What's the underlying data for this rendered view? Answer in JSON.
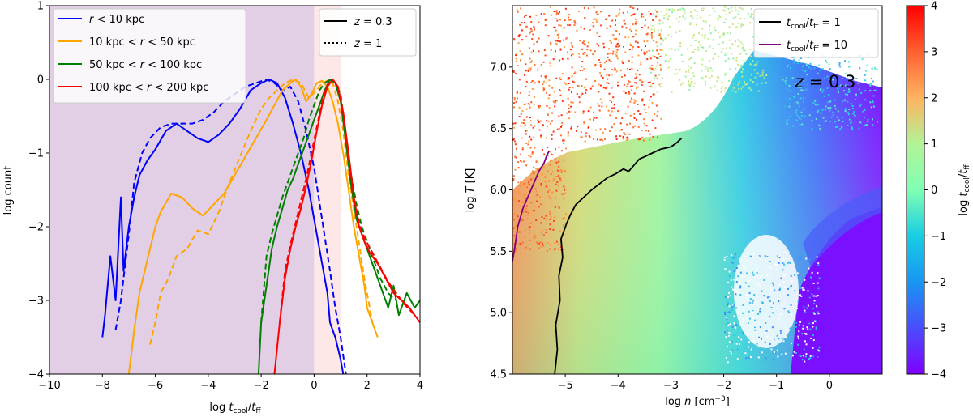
{
  "chart_data": [
    {
      "type": "line",
      "xlabel": "log t_cool/t_ff",
      "ylabel": "log count",
      "xlim": [
        -10,
        4
      ],
      "ylim": [
        -4,
        1
      ],
      "x_ticks": [
        "−10",
        "−8",
        "−6",
        "−4",
        "−2",
        "0",
        "2",
        "4"
      ],
      "y_ticks": [
        "−4",
        "−3",
        "−2",
        "−1",
        "0",
        "1"
      ],
      "shaded_regions": [
        {
          "x": [
            -10,
            0
          ],
          "color": "#e2cfe6"
        },
        {
          "x": [
            0,
            1
          ],
          "color": "#fde7e7"
        }
      ],
      "legend_series": [
        {
          "name": "r < 10 kpc",
          "color": "#0000ff"
        },
        {
          "name": "10 kpc < r < 50 kpc",
          "color": "#ffa500"
        },
        {
          "name": "50 kpc < r < 100 kpc",
          "color": "#007f00"
        },
        {
          "name": "100 kpc < r < 200 kpc",
          "color": "#ff0000"
        }
      ],
      "legend_styles": [
        {
          "name": "z = 0.3",
          "dash": "solid"
        },
        {
          "name": "z = 1",
          "dash": "dotted"
        }
      ],
      "series": [
        {
          "name": "r < 10 kpc",
          "z": "0.3",
          "color": "#0000ff",
          "x": [
            -8.0,
            -7.9,
            -7.7,
            -7.5,
            -7.3,
            -7.2,
            -7.0,
            -6.8,
            -6.6,
            -6.3,
            -6.0,
            -5.6,
            -5.2,
            -4.8,
            -4.4,
            -4.0,
            -3.6,
            -3.2,
            -2.8,
            -2.4,
            -2.0,
            -1.7,
            -1.4,
            -1.1,
            -0.8,
            -0.5,
            -0.2,
            0.1,
            0.3,
            0.5,
            0.6,
            0.8,
            1.0,
            1.1
          ],
          "values": [
            -3.5,
            -3.2,
            -2.4,
            -3.0,
            -1.6,
            -2.6,
            -2.0,
            -1.6,
            -1.3,
            -1.1,
            -0.95,
            -0.7,
            -0.6,
            -0.7,
            -0.8,
            -0.85,
            -0.75,
            -0.6,
            -0.4,
            -0.15,
            -0.05,
            0.0,
            -0.05,
            -0.25,
            -0.6,
            -1.0,
            -1.5,
            -2.1,
            -2.5,
            -2.9,
            -3.3,
            -3.5,
            -3.8,
            -4.0
          ]
        },
        {
          "name": "r < 10 kpc",
          "z": "1",
          "color": "#0000ff",
          "x": [
            -7.5,
            -7.3,
            -7.0,
            -6.8,
            -6.5,
            -6.2,
            -5.8,
            -5.4,
            -5.0,
            -4.6,
            -4.2,
            -3.8,
            -3.4,
            -3.0,
            -2.6,
            -2.2,
            -1.8,
            -1.5,
            -1.2,
            -0.9,
            -0.6,
            -0.3,
            0.0,
            0.3,
            0.6,
            0.8,
            1.0,
            1.2
          ],
          "values": [
            -3.4,
            -3.0,
            -2.1,
            -1.4,
            -1.0,
            -0.8,
            -0.65,
            -0.6,
            -0.6,
            -0.6,
            -0.55,
            -0.45,
            -0.3,
            -0.2,
            -0.1,
            -0.05,
            0.0,
            -0.05,
            -0.15,
            -0.1,
            -0.3,
            -0.7,
            -1.2,
            -1.9,
            -2.6,
            -3.1,
            -3.5,
            -4.0
          ]
        },
        {
          "name": "10 kpc < r < 50 kpc",
          "z": "0.3",
          "color": "#ffa500",
          "x": [
            -7.0,
            -6.8,
            -6.6,
            -6.4,
            -6.2,
            -6.0,
            -5.8,
            -5.4,
            -5.0,
            -4.6,
            -4.2,
            -3.8,
            -3.4,
            -3.0,
            -2.6,
            -2.2,
            -1.8,
            -1.5,
            -1.2,
            -0.9,
            -0.7,
            -0.5,
            -0.3,
            -0.1,
            0.1,
            0.3,
            0.5,
            0.7,
            0.9,
            1.1,
            1.3,
            1.5,
            1.7,
            1.9,
            2.0,
            2.2,
            2.4
          ],
          "values": [
            -4.0,
            -3.4,
            -2.9,
            -2.6,
            -2.3,
            -2.0,
            -1.8,
            -1.55,
            -1.6,
            -1.75,
            -1.85,
            -1.7,
            -1.55,
            -1.3,
            -1.05,
            -0.8,
            -0.55,
            -0.35,
            -0.15,
            -0.05,
            0.0,
            -0.1,
            -0.3,
            -0.2,
            -0.05,
            -0.02,
            -0.1,
            -0.3,
            -0.6,
            -1.0,
            -1.5,
            -2.0,
            -2.4,
            -2.8,
            -3.1,
            -3.3,
            -3.5
          ]
        },
        {
          "name": "10 kpc < r < 50 kpc",
          "z": "1",
          "color": "#ffa500",
          "x": [
            -6.2,
            -6.0,
            -5.8,
            -5.5,
            -5.2,
            -4.8,
            -4.4,
            -4.0,
            -3.6,
            -3.2,
            -2.8,
            -2.4,
            -2.0,
            -1.7,
            -1.4,
            -1.1,
            -0.8,
            -0.5,
            -0.2,
            0.1,
            0.3,
            0.5,
            0.7,
            0.9,
            1.1,
            1.3,
            1.6,
            1.9,
            2.2
          ],
          "values": [
            -3.6,
            -3.3,
            -2.9,
            -2.7,
            -2.4,
            -2.3,
            -2.05,
            -2.1,
            -1.8,
            -1.4,
            -1.05,
            -0.7,
            -0.4,
            -0.25,
            -0.15,
            -0.05,
            0.0,
            -0.05,
            -0.25,
            -0.15,
            -0.05,
            -0.02,
            -0.05,
            -0.3,
            -0.7,
            -1.3,
            -2.0,
            -2.7,
            -3.3
          ]
        },
        {
          "name": "50 kpc < r < 100 kpc",
          "z": "0.3",
          "color": "#007f00",
          "x": [
            -2.1,
            -2.0,
            -1.8,
            -1.6,
            -1.4,
            -1.2,
            -1.0,
            -0.8,
            -0.6,
            -0.4,
            -0.2,
            0.0,
            0.2,
            0.4,
            0.6,
            0.8,
            1.0,
            1.2,
            1.4,
            1.6,
            1.8,
            2.0,
            2.2,
            2.4,
            2.6,
            2.8,
            3.0,
            3.2,
            3.5,
            3.8,
            4.0
          ],
          "values": [
            -4.0,
            -3.3,
            -2.8,
            -2.3,
            -2.0,
            -1.75,
            -1.5,
            -1.35,
            -1.15,
            -0.95,
            -0.75,
            -0.55,
            -0.35,
            -0.15,
            0.0,
            -0.05,
            -0.3,
            -0.85,
            -1.45,
            -1.9,
            -2.1,
            -2.3,
            -2.5,
            -2.7,
            -2.9,
            -3.1,
            -2.8,
            -3.2,
            -2.9,
            -3.1,
            -3.0
          ]
        },
        {
          "name": "50 kpc < r < 100 kpc",
          "z": "1",
          "color": "#007f00",
          "x": [
            -2.0,
            -1.8,
            -1.6,
            -1.4,
            -1.2,
            -1.0,
            -0.8,
            -0.6,
            -0.4,
            -0.2,
            0.0,
            0.2,
            0.4,
            0.6,
            0.8,
            1.0,
            1.2,
            1.4,
            1.6,
            1.8,
            2.0,
            2.2,
            2.5,
            2.8,
            3.1
          ],
          "values": [
            -3.3,
            -2.4,
            -2.1,
            -1.85,
            -1.6,
            -1.4,
            -1.2,
            -1.0,
            -0.8,
            -0.55,
            -0.35,
            -0.15,
            -0.05,
            0.0,
            -0.05,
            -0.2,
            -0.75,
            -1.3,
            -1.7,
            -2.0,
            -2.2,
            -2.4,
            -2.7,
            -2.9,
            -3.0
          ]
        },
        {
          "name": "100 kpc < r < 200 kpc",
          "z": "0.3",
          "color": "#ff0000",
          "x": [
            -1.5,
            -1.3,
            -1.1,
            -0.9,
            -0.7,
            -0.5,
            -0.3,
            -0.1,
            0.1,
            0.3,
            0.5,
            0.7,
            0.9,
            1.1,
            1.3,
            1.5,
            1.7,
            1.9,
            2.1,
            2.4,
            2.7,
            3.0,
            3.3,
            3.6,
            4.0
          ],
          "values": [
            -4.0,
            -3.3,
            -2.7,
            -2.3,
            -2.0,
            -1.75,
            -1.45,
            -1.1,
            -0.7,
            -0.35,
            -0.1,
            0.0,
            -0.1,
            -0.45,
            -1.0,
            -1.6,
            -2.0,
            -2.2,
            -2.35,
            -2.5,
            -2.7,
            -2.9,
            -3.0,
            -3.1,
            -3.3
          ]
        },
        {
          "name": "100 kpc < r < 200 kpc",
          "z": "1",
          "color": "#ff0000",
          "x": [
            -1.3,
            -1.1,
            -0.9,
            -0.7,
            -0.5,
            -0.3,
            -0.1,
            0.1,
            0.3,
            0.5,
            0.7,
            0.9,
            1.1,
            1.3,
            1.5,
            1.7,
            1.9,
            2.2,
            2.5,
            2.8,
            3.1,
            3.4,
            3.8
          ],
          "values": [
            -3.3,
            -2.6,
            -2.25,
            -1.95,
            -1.65,
            -1.35,
            -1.0,
            -0.65,
            -0.3,
            -0.08,
            0.0,
            -0.1,
            -0.45,
            -1.05,
            -1.6,
            -1.95,
            -2.15,
            -2.35,
            -2.55,
            -2.75,
            -2.9,
            -3.05,
            -3.2
          ]
        }
      ]
    },
    {
      "type": "scatter",
      "xlabel": "log n [cm⁻³]",
      "ylabel": "log T [K]",
      "xlim": [
        -6,
        1
      ],
      "ylim": [
        4.5,
        7.5
      ],
      "x_ticks": [
        "−5",
        "−4",
        "−3",
        "−2",
        "−1",
        "0"
      ],
      "y_ticks": [
        "4.5",
        "5.0",
        "5.5",
        "6.0",
        "6.5",
        "7.0"
      ],
      "annotation": "z = 0.3",
      "color_scale": "rainbow",
      "colorbar": {
        "label": "log t_cool/t_ff",
        "range": [
          -4,
          4
        ],
        "ticks": [
          "−4",
          "−3",
          "−2",
          "−1",
          "0",
          "1",
          "2",
          "3",
          "4"
        ]
      },
      "legend": [
        {
          "name": "t_cool/t_ff = 1",
          "color": "#000000"
        },
        {
          "name": "t_cool/t_ff = 10",
          "color": "#800080"
        }
      ],
      "contours": [
        {
          "name": "t_cool/t_ff = 1",
          "color": "#000000",
          "x": [
            -5.2,
            -5.15,
            -5.18,
            -5.1,
            -5.12,
            -5.05,
            -5.08,
            -4.98,
            -4.9,
            -4.8,
            -4.65,
            -4.5,
            -4.35,
            -4.2,
            -4.05,
            -3.9,
            -3.8,
            -3.7,
            -3.6,
            -3.5,
            -3.35,
            -3.2,
            -3.0,
            -2.9,
            -2.8
          ],
          "y": [
            4.5,
            4.7,
            4.9,
            5.1,
            5.3,
            5.45,
            5.6,
            5.72,
            5.8,
            5.88,
            5.94,
            6.0,
            6.05,
            6.1,
            6.13,
            6.17,
            6.15,
            6.2,
            6.25,
            6.27,
            6.3,
            6.33,
            6.35,
            6.38,
            6.42
          ]
        },
        {
          "name": "t_cool/t_ff = 10",
          "color": "#800080",
          "x": [
            -6.0,
            -5.95,
            -5.9,
            -5.8,
            -5.7,
            -5.6,
            -5.5,
            -5.4,
            -5.35,
            -5.3
          ],
          "y": [
            5.42,
            5.55,
            5.7,
            5.85,
            5.95,
            6.05,
            6.15,
            6.22,
            6.28,
            6.32
          ]
        }
      ]
    }
  ],
  "legend_labels": {
    "r1": {
      "pre": "r",
      "post": " < 10 kpc"
    },
    "r2": {
      "pre": "10 kpc < ",
      "var": "r",
      "post": " < 50 kpc"
    },
    "r3": {
      "pre": "50 kpc < ",
      "var": "r",
      "post": " < 100 kpc"
    },
    "r4": {
      "pre": "100 kpc < ",
      "var": "r",
      "post": " < 200 kpc"
    },
    "z1": {
      "var": "z",
      "post": " = 0.3"
    },
    "z2": {
      "var": "z",
      "post": " = 1"
    },
    "c1": {
      "t": "t",
      "sub1": "cool",
      "slash": "/",
      "t2": "t",
      "sub2": "ff",
      "post": " = 1"
    },
    "c2": {
      "t": "t",
      "sub1": "cool",
      "slash": "/",
      "t2": "t",
      "sub2": "ff",
      "post": " = 10"
    }
  },
  "axis_label_parts": {
    "left_x": {
      "log": "log ",
      "t": "t",
      "sub1": "cool",
      "slash": "/",
      "t2": "t",
      "sub2": "ff"
    },
    "left_y": "log count",
    "right_x": {
      "log": "log ",
      "n": "n",
      "unit": " [cm",
      "exp": "−3",
      "close": "]"
    },
    "right_y": {
      "log": "log ",
      "T": "T",
      "unit": " [K]"
    },
    "cbar": {
      "log": "log ",
      "t": "t",
      "sub1": "cool",
      "slash": "/",
      "t2": "t",
      "sub2": "ff"
    },
    "annot": {
      "z": "z",
      "eq": " = 0.3"
    }
  }
}
